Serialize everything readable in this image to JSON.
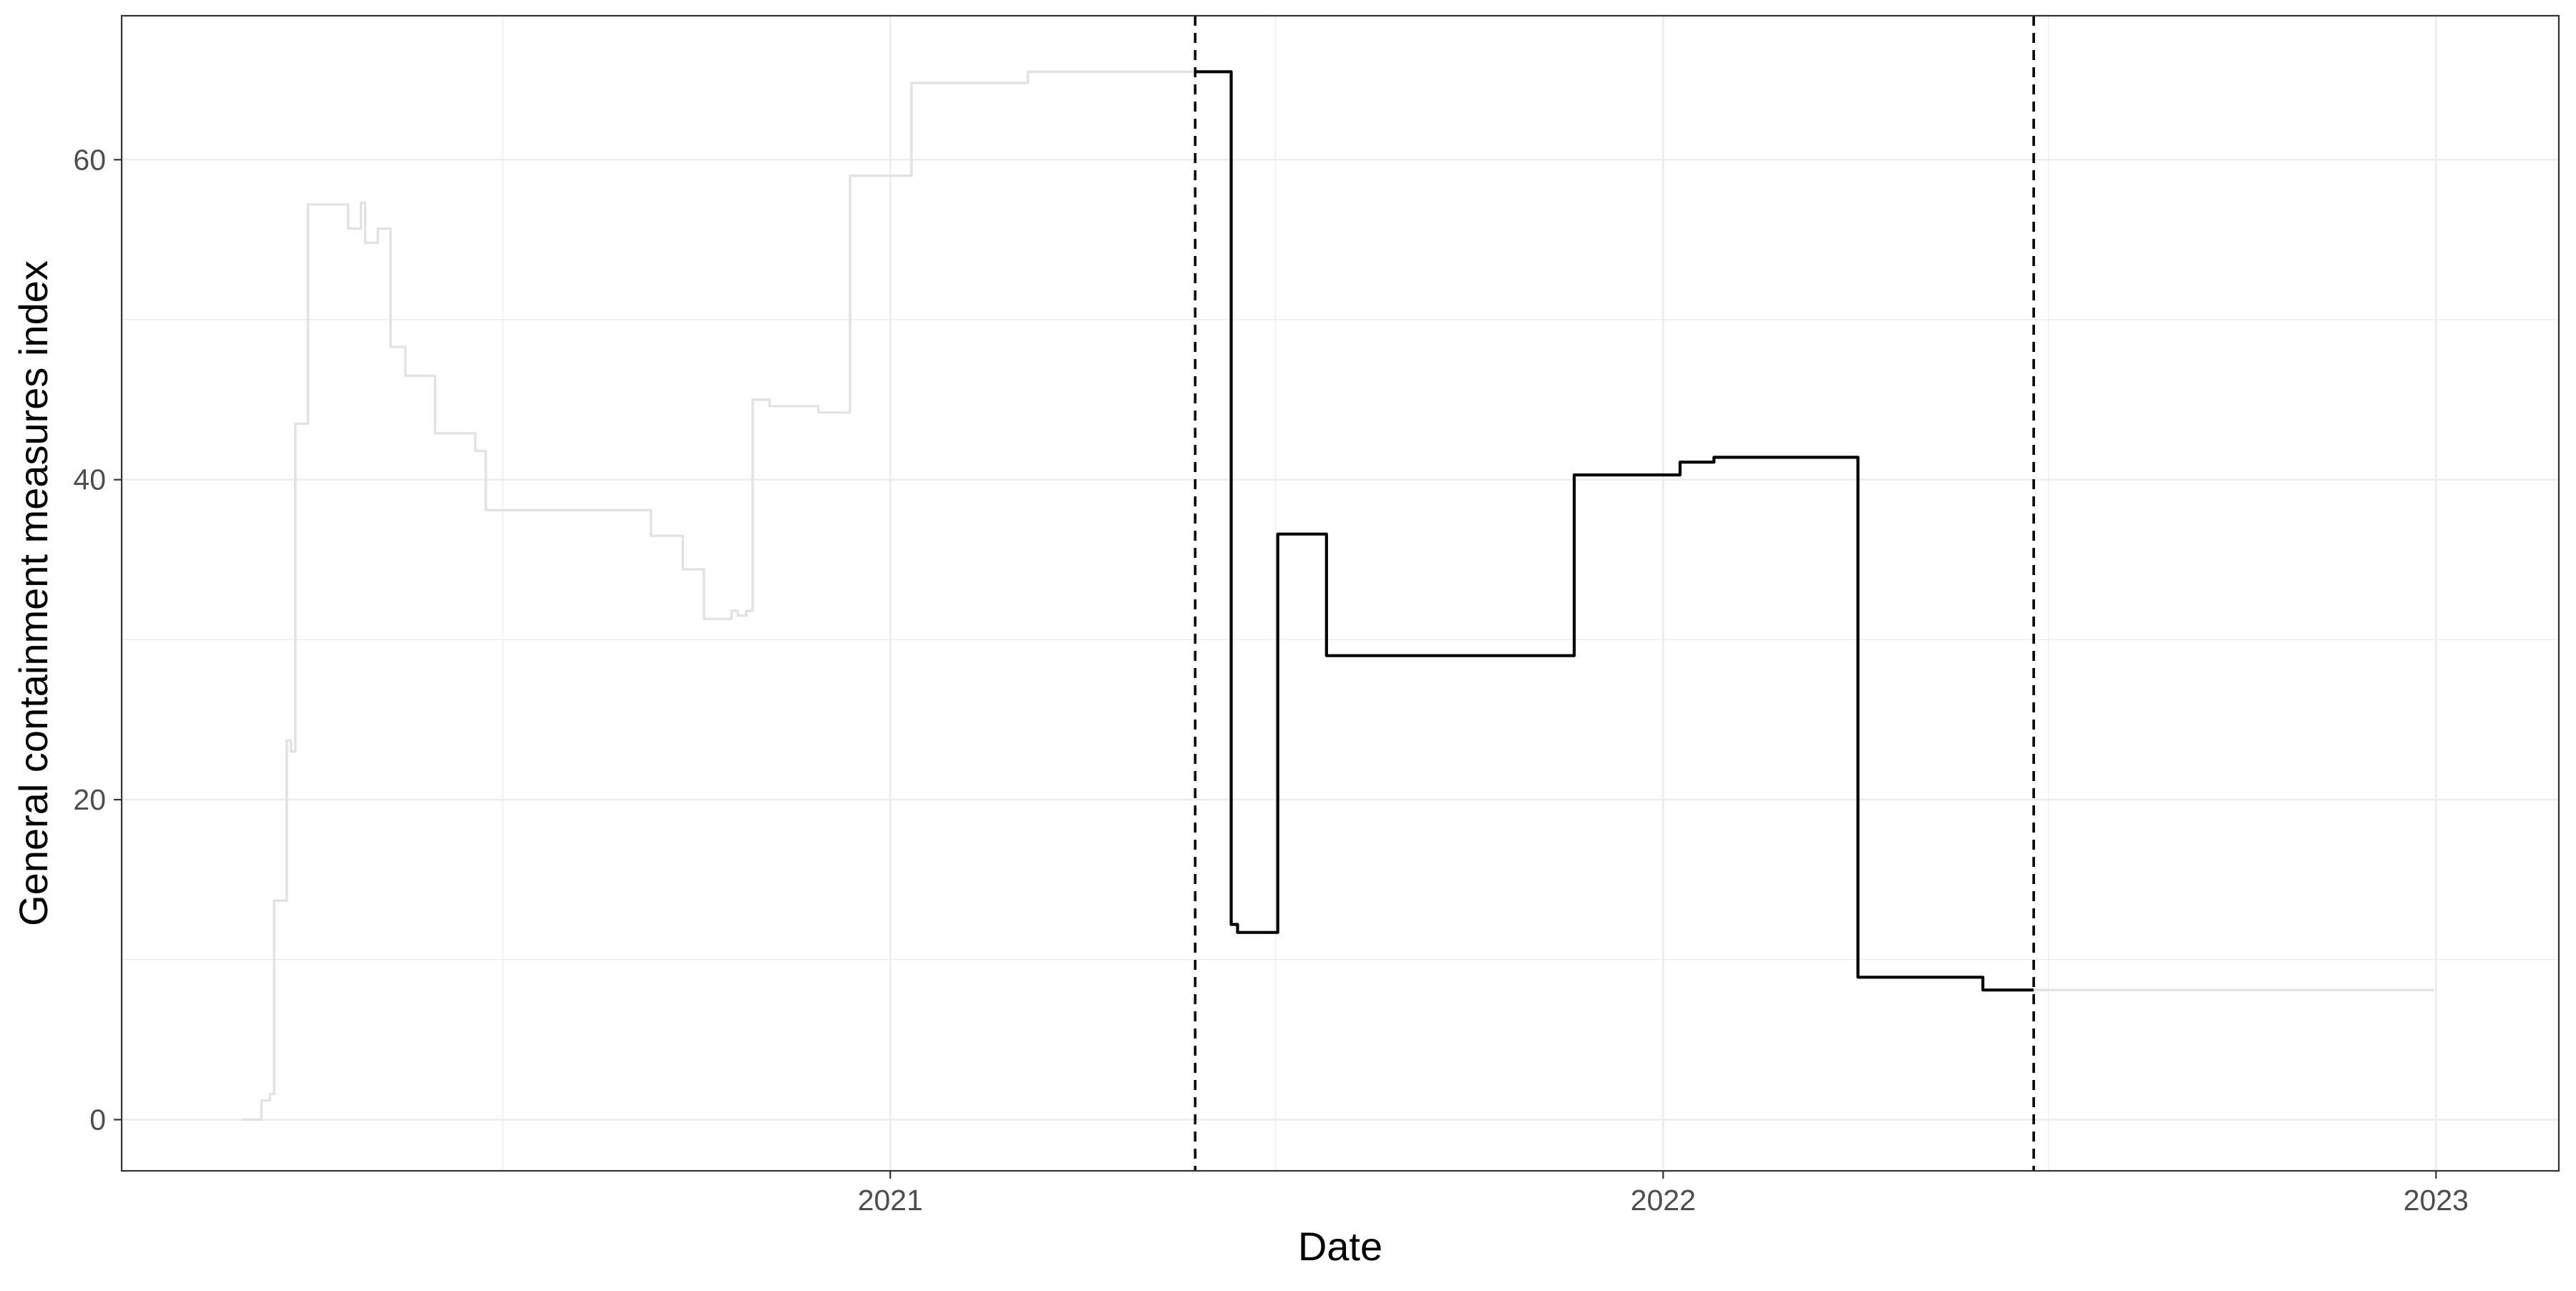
{
  "chart_data": {
    "type": "line",
    "title": "",
    "xlabel": "Date",
    "ylabel": "General containment measures index",
    "x_ticks": [
      "2021",
      "2022",
      "2023"
    ],
    "y_ticks": [
      0,
      20,
      40,
      60
    ],
    "xlim": [
      "2020-01-04",
      "2023-02-28"
    ],
    "ylim": [
      -3.2,
      69
    ],
    "grid": true,
    "legend": "none",
    "colors": {
      "highlight": "#000000",
      "context": "#e2e2e2",
      "grid": "#ebebeb",
      "panel_border": "#333333"
    },
    "vlines": [
      {
        "x": "2021-05-25",
        "style": "dashed"
      },
      {
        "x": "2022-06-25",
        "style": "dashed"
      }
    ],
    "series": [
      {
        "role": "context",
        "step": true,
        "points": [
          [
            "2020-03-01",
            0.0
          ],
          [
            "2020-03-10",
            1.2
          ],
          [
            "2020-03-14",
            1.6
          ],
          [
            "2020-03-16",
            13.7
          ],
          [
            "2020-03-20",
            13.7
          ],
          [
            "2020-03-22",
            23.7
          ],
          [
            "2020-03-24",
            23.0
          ],
          [
            "2020-03-26",
            43.5
          ],
          [
            "2020-04-01",
            57.2
          ],
          [
            "2020-04-20",
            55.7
          ],
          [
            "2020-04-26",
            57.3
          ],
          [
            "2020-04-28",
            54.8
          ],
          [
            "2020-05-04",
            55.7
          ],
          [
            "2020-05-10",
            48.3
          ],
          [
            "2020-05-17",
            46.5
          ],
          [
            "2020-05-31",
            42.9
          ],
          [
            "2020-06-19",
            41.8
          ],
          [
            "2020-06-24",
            38.1
          ],
          [
            "2020-09-10",
            36.5
          ],
          [
            "2020-09-25",
            34.4
          ],
          [
            "2020-10-05",
            31.3
          ],
          [
            "2020-10-18",
            31.8
          ],
          [
            "2020-10-21",
            31.5
          ],
          [
            "2020-10-25",
            31.8
          ],
          [
            "2020-10-28",
            45.0
          ],
          [
            "2020-11-05",
            44.6
          ],
          [
            "2020-11-28",
            44.2
          ],
          [
            "2020-12-13",
            59.0
          ],
          [
            "2021-01-11",
            64.8
          ],
          [
            "2021-03-07",
            65.5
          ],
          [
            "2021-05-25",
            65.5
          ]
        ]
      },
      {
        "role": "highlight",
        "step": true,
        "points": [
          [
            "2021-05-25",
            65.5
          ],
          [
            "2021-06-11",
            12.2
          ],
          [
            "2021-06-14",
            11.7
          ],
          [
            "2021-07-03",
            36.6
          ],
          [
            "2021-07-26",
            29.0
          ],
          [
            "2021-11-20",
            40.3
          ],
          [
            "2022-01-09",
            41.1
          ],
          [
            "2022-01-25",
            41.4
          ],
          [
            "2022-04-03",
            8.9
          ],
          [
            "2022-06-01",
            8.1
          ],
          [
            "2022-06-25",
            8.1
          ]
        ]
      },
      {
        "role": "context",
        "step": true,
        "points": [
          [
            "2022-06-25",
            8.1
          ],
          [
            "2022-12-31",
            8.1
          ]
        ]
      }
    ]
  }
}
